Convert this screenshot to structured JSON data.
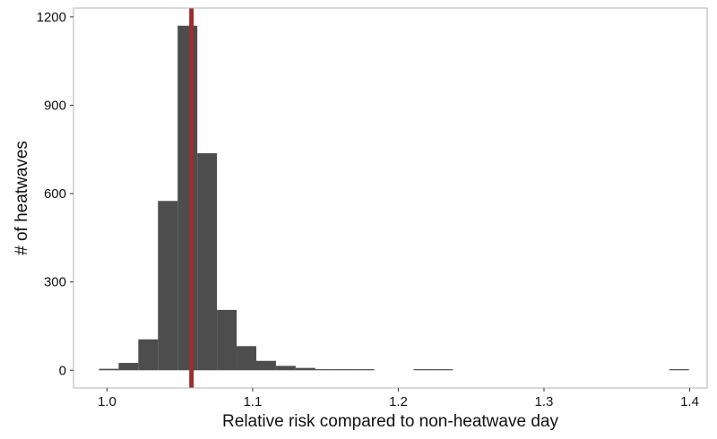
{
  "chart_data": {
    "type": "bar",
    "xlabel": "Relative risk compared to non-heatwave day",
    "ylabel": "# of heatwaves",
    "xlim": [
      0.977,
      1.412
    ],
    "ylim": [
      -60,
      1230
    ],
    "x_ticks": [
      1.0,
      1.1,
      1.2,
      1.3,
      1.4
    ],
    "x_tick_labels": [
      "1.0",
      "1.1",
      "1.2",
      "1.3",
      "1.4"
    ],
    "y_ticks": [
      0,
      300,
      600,
      900,
      1200
    ],
    "y_tick_labels": [
      "0",
      "300",
      "600",
      "900",
      "1200"
    ],
    "grid": false,
    "bin_width": 0.0135,
    "bins": [
      {
        "x0": 0.9945,
        "x1": 1.008,
        "count": 5
      },
      {
        "x0": 1.008,
        "x1": 1.0215,
        "count": 25
      },
      {
        "x0": 1.0215,
        "x1": 1.035,
        "count": 105
      },
      {
        "x0": 1.035,
        "x1": 1.0485,
        "count": 575
      },
      {
        "x0": 1.0485,
        "x1": 1.062,
        "count": 1170
      },
      {
        "x0": 1.062,
        "x1": 1.0755,
        "count": 737
      },
      {
        "x0": 1.0755,
        "x1": 1.089,
        "count": 205
      },
      {
        "x0": 1.089,
        "x1": 1.1025,
        "count": 82
      },
      {
        "x0": 1.1025,
        "x1": 1.116,
        "count": 32
      },
      {
        "x0": 1.116,
        "x1": 1.1295,
        "count": 15
      },
      {
        "x0": 1.1295,
        "x1": 1.143,
        "count": 8
      },
      {
        "x0": 1.143,
        "x1": 1.1565,
        "count": 3
      },
      {
        "x0": 1.1565,
        "x1": 1.17,
        "count": 1
      },
      {
        "x0": 1.17,
        "x1": 1.1835,
        "count": 2
      },
      {
        "x0": 1.1835,
        "x1": 1.197,
        "count": 0
      },
      {
        "x0": 1.197,
        "x1": 1.2105,
        "count": 0
      },
      {
        "x0": 1.2105,
        "x1": 1.224,
        "count": 1
      },
      {
        "x0": 1.224,
        "x1": 1.2375,
        "count": 1
      },
      {
        "x0": 1.386,
        "x1": 1.3995,
        "count": 1
      }
    ],
    "reference_line": {
      "x": 1.058,
      "color": "#9b2f2f"
    },
    "colors": {
      "bars": "#4d4d4d",
      "panel_border": "#b3b3b3",
      "background": "#ffffff"
    }
  }
}
